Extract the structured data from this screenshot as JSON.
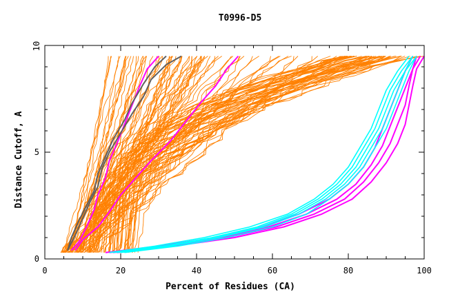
{
  "chart_data": {
    "type": "line",
    "title": "T0996-D5",
    "xlabel": "Percent of Residues (CA)",
    "ylabel": "Distance Cutoff, A",
    "xlim": [
      0,
      100
    ],
    "ylim": [
      0,
      10
    ],
    "x_ticks": [
      "0",
      "20",
      "40",
      "60",
      "80",
      "100"
    ],
    "y_ticks": [
      "0",
      "5",
      "10"
    ],
    "grid": false,
    "legend": "none",
    "colors": {
      "background_models": "#ff8000",
      "highlight_magenta": "#ff00ff",
      "highlight_cyan": "#00ffff",
      "highlight_gray": "#606060"
    },
    "background_curve_count": 120,
    "series": [
      {
        "color": "#ff00ff",
        "points": [
          [
            7,
            0.4
          ],
          [
            9,
            0.8
          ],
          [
            11,
            1.5
          ],
          [
            13,
            2.3
          ],
          [
            14,
            3.0
          ],
          [
            16,
            3.8
          ],
          [
            17,
            4.6
          ],
          [
            19,
            5.4
          ],
          [
            21,
            6.3
          ],
          [
            23,
            7.2
          ],
          [
            25,
            8.1
          ],
          [
            27,
            8.9
          ],
          [
            30,
            9.5
          ]
        ]
      },
      {
        "color": "#606060",
        "points": [
          [
            6,
            0.4
          ],
          [
            7,
            1.0
          ],
          [
            9,
            1.8
          ],
          [
            11,
            2.5
          ],
          [
            13,
            3.2
          ],
          [
            14,
            4.0
          ],
          [
            16,
            4.8
          ],
          [
            18,
            5.6
          ],
          [
            21,
            6.5
          ],
          [
            23,
            7.3
          ],
          [
            26,
            8.2
          ],
          [
            29,
            9.0
          ],
          [
            32,
            9.5
          ]
        ]
      },
      {
        "color": "#606060",
        "points": [
          [
            6,
            0.4
          ],
          [
            8,
            1.1
          ],
          [
            10,
            1.9
          ],
          [
            12,
            2.7
          ],
          [
            14,
            3.4
          ],
          [
            15,
            4.2
          ],
          [
            17,
            5.0
          ],
          [
            20,
            5.9
          ],
          [
            23,
            6.8
          ],
          [
            26,
            7.6
          ],
          [
            28,
            8.4
          ],
          [
            32,
            9.1
          ],
          [
            36,
            9.5
          ]
        ]
      },
      {
        "color": "#ff00ff",
        "points": [
          [
            8,
            0.4
          ],
          [
            10,
            0.9
          ],
          [
            14,
            1.5
          ],
          [
            17,
            2.2
          ],
          [
            20,
            3.0
          ],
          [
            24,
            3.8
          ],
          [
            28,
            4.6
          ],
          [
            33,
            5.5
          ],
          [
            37,
            6.4
          ],
          [
            41,
            7.3
          ],
          [
            45,
            8.1
          ],
          [
            48,
            8.9
          ],
          [
            51,
            9.5
          ]
        ]
      },
      {
        "color": "#ff00ff",
        "points": [
          [
            16,
            0.3
          ],
          [
            30,
            0.6
          ],
          [
            45,
            1.0
          ],
          [
            57,
            1.5
          ],
          [
            67,
            2.1
          ],
          [
            75,
            2.8
          ],
          [
            80,
            3.5
          ],
          [
            84,
            4.3
          ],
          [
            87,
            5.2
          ],
          [
            89,
            6.1
          ],
          [
            91,
            7.0
          ],
          [
            93,
            7.9
          ],
          [
            95,
            8.8
          ],
          [
            97,
            9.5
          ]
        ]
      },
      {
        "color": "#ff00ff",
        "points": [
          [
            17,
            0.3
          ],
          [
            32,
            0.6
          ],
          [
            47,
            1.0
          ],
          [
            59,
            1.5
          ],
          [
            69,
            2.1
          ],
          [
            77,
            2.8
          ],
          [
            82,
            3.5
          ],
          [
            86,
            4.4
          ],
          [
            89,
            5.3
          ],
          [
            91,
            6.2
          ],
          [
            93,
            7.1
          ],
          [
            95,
            8.0
          ],
          [
            97,
            8.9
          ],
          [
            98,
            9.5
          ]
        ]
      },
      {
        "color": "#ff00ff",
        "points": [
          [
            18,
            0.3
          ],
          [
            33,
            0.6
          ],
          [
            48,
            1.0
          ],
          [
            61,
            1.5
          ],
          [
            71,
            2.1
          ],
          [
            79,
            2.8
          ],
          [
            84,
            3.6
          ],
          [
            88,
            4.5
          ],
          [
            91,
            5.4
          ],
          [
            93,
            6.3
          ],
          [
            95,
            7.2
          ],
          [
            96,
            8.1
          ],
          [
            97,
            8.9
          ],
          [
            99,
            9.5
          ]
        ]
      },
      {
        "color": "#ff00ff",
        "points": [
          [
            19,
            0.3
          ],
          [
            34,
            0.6
          ],
          [
            50,
            1.0
          ],
          [
            63,
            1.5
          ],
          [
            73,
            2.1
          ],
          [
            81,
            2.8
          ],
          [
            86,
            3.6
          ],
          [
            90,
            4.5
          ],
          [
            93,
            5.4
          ],
          [
            95,
            6.3
          ],
          [
            96,
            7.2
          ],
          [
            97,
            8.1
          ],
          [
            98,
            8.9
          ],
          [
            100,
            9.5
          ]
        ]
      },
      {
        "color": "#00ffff",
        "points": [
          [
            17,
            0.3
          ],
          [
            29,
            0.6
          ],
          [
            42,
            1.0
          ],
          [
            54,
            1.5
          ],
          [
            64,
            2.1
          ],
          [
            71,
            2.8
          ],
          [
            76,
            3.5
          ],
          [
            80,
            4.3
          ],
          [
            83,
            5.2
          ],
          [
            86,
            6.1
          ],
          [
            88,
            7.0
          ],
          [
            90,
            7.9
          ],
          [
            93,
            8.8
          ],
          [
            96,
            9.5
          ]
        ]
      },
      {
        "color": "#00ffff",
        "points": [
          [
            18,
            0.3
          ],
          [
            31,
            0.6
          ],
          [
            44,
            1.0
          ],
          [
            56,
            1.5
          ],
          [
            65,
            2.1
          ],
          [
            72,
            2.8
          ],
          [
            77,
            3.5
          ],
          [
            81,
            4.3
          ],
          [
            84,
            5.2
          ],
          [
            87,
            6.1
          ],
          [
            89,
            7.0
          ],
          [
            91,
            7.9
          ],
          [
            94,
            8.8
          ],
          [
            97,
            9.5
          ]
        ]
      },
      {
        "color": "#00ffff",
        "points": [
          [
            19,
            0.3
          ],
          [
            32,
            0.6
          ],
          [
            45,
            1.0
          ],
          [
            57,
            1.5
          ],
          [
            66,
            2.1
          ],
          [
            73,
            2.8
          ],
          [
            78,
            3.5
          ],
          [
            82,
            4.3
          ],
          [
            85,
            5.2
          ],
          [
            88,
            6.1
          ],
          [
            90,
            7.0
          ],
          [
            92,
            7.9
          ],
          [
            95,
            8.8
          ],
          [
            98,
            9.5
          ]
        ]
      },
      {
        "color": "#00ffff",
        "points": [
          [
            20,
            0.3
          ],
          [
            33,
            0.6
          ],
          [
            46,
            1.0
          ],
          [
            58,
            1.5
          ],
          [
            67,
            2.1
          ],
          [
            74,
            2.8
          ],
          [
            79,
            3.5
          ],
          [
            83,
            4.3
          ],
          [
            86,
            5.2
          ],
          [
            89,
            6.1
          ],
          [
            91,
            7.0
          ],
          [
            93,
            7.9
          ],
          [
            95,
            8.8
          ],
          [
            97,
            9.5
          ]
        ]
      },
      {
        "color": "#00ffff",
        "points": [
          [
            21,
            0.3
          ],
          [
            35,
            0.6
          ],
          [
            48,
            1.0
          ],
          [
            60,
            1.5
          ],
          [
            69,
            2.1
          ],
          [
            75,
            2.8
          ],
          [
            80,
            3.5
          ],
          [
            84,
            4.3
          ],
          [
            87,
            5.2
          ],
          [
            90,
            6.1
          ],
          [
            92,
            7.0
          ],
          [
            94,
            7.9
          ],
          [
            96,
            8.8
          ],
          [
            98,
            9.5
          ]
        ]
      }
    ]
  }
}
